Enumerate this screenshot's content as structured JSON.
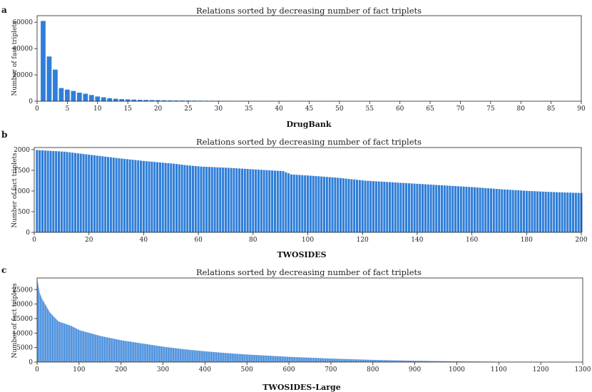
{
  "chart_data": [
    {
      "type": "bar",
      "panel_label": "a",
      "title": "Relations sorted by decreasing number of fact triplets",
      "xlabel": "DrugBank",
      "ylabel": "Number of fact triplets",
      "xlim": [
        0,
        90
      ],
      "ylim": [
        0,
        65000
      ],
      "xticks": [
        0,
        5,
        10,
        15,
        20,
        25,
        30,
        35,
        40,
        45,
        50,
        55,
        60,
        65,
        70,
        75,
        80,
        85,
        90
      ],
      "yticks": [
        0,
        20000,
        40000,
        60000
      ],
      "values": [
        61000,
        34000,
        24000,
        10000,
        8800,
        7800,
        6500,
        5700,
        4700,
        3600,
        3000,
        2300,
        1900,
        1600,
        1400,
        1200,
        1050,
        950,
        850,
        780,
        700,
        640,
        580,
        530,
        480,
        440,
        400,
        370,
        340,
        310,
        290,
        270,
        250,
        230,
        210,
        190,
        175,
        160,
        145,
        130,
        120,
        110,
        100,
        90,
        80,
        70,
        60,
        50,
        40,
        35,
        30,
        25,
        20,
        15,
        12,
        10,
        8,
        6
      ]
    },
    {
      "type": "bar",
      "panel_label": "b",
      "title": "Relations sorted by decreasing number of fact triplets",
      "xlabel": "TWOSIDES",
      "ylabel": "Number of fact triplets",
      "xlim": [
        0,
        200
      ],
      "ylim": [
        0,
        2050
      ],
      "xticks": [
        0,
        20,
        40,
        60,
        80,
        100,
        120,
        140,
        160,
        180,
        200
      ],
      "yticks": [
        0,
        500,
        1000,
        1500,
        2000
      ],
      "points": [
        [
          0,
          1990
        ],
        [
          10,
          1950
        ],
        [
          20,
          1870
        ],
        [
          30,
          1790
        ],
        [
          40,
          1720
        ],
        [
          50,
          1660
        ],
        [
          55,
          1620
        ],
        [
          60,
          1590
        ],
        [
          70,
          1560
        ],
        [
          80,
          1520
        ],
        [
          90,
          1480
        ],
        [
          93,
          1400
        ],
        [
          100,
          1370
        ],
        [
          110,
          1320
        ],
        [
          120,
          1250
        ],
        [
          130,
          1210
        ],
        [
          140,
          1170
        ],
        [
          150,
          1130
        ],
        [
          160,
          1090
        ],
        [
          170,
          1040
        ],
        [
          180,
          1000
        ],
        [
          190,
          970
        ],
        [
          200,
          950
        ]
      ],
      "count": 200
    },
    {
      "type": "bar",
      "panel_label": "c",
      "title": "Relations sorted by decreasing number of fact triplets",
      "xlabel": "TWOSIDES-Large",
      "ylabel": "Number of fact triplets",
      "xlim": [
        0,
        1300
      ],
      "ylim": [
        0,
        29000
      ],
      "xticks": [
        0,
        100,
        200,
        300,
        400,
        500,
        600,
        700,
        800,
        900,
        1000,
        1100,
        1200,
        1300
      ],
      "yticks": [
        0,
        5000,
        10000,
        15000,
        20000,
        25000
      ],
      "points": [
        [
          0,
          28000
        ],
        [
          5,
          24000
        ],
        [
          10,
          22000
        ],
        [
          20,
          19500
        ],
        [
          30,
          17000
        ],
        [
          50,
          14000
        ],
        [
          80,
          12500
        ],
        [
          100,
          11000
        ],
        [
          150,
          9000
        ],
        [
          200,
          7500
        ],
        [
          250,
          6400
        ],
        [
          300,
          5300
        ],
        [
          350,
          4400
        ],
        [
          400,
          3700
        ],
        [
          450,
          3100
        ],
        [
          500,
          2600
        ],
        [
          600,
          1800
        ],
        [
          700,
          1200
        ],
        [
          800,
          750
        ],
        [
          900,
          450
        ],
        [
          1000,
          250
        ],
        [
          1100,
          120
        ],
        [
          1200,
          40
        ],
        [
          1210,
          0
        ]
      ],
      "count": 1210
    }
  ]
}
